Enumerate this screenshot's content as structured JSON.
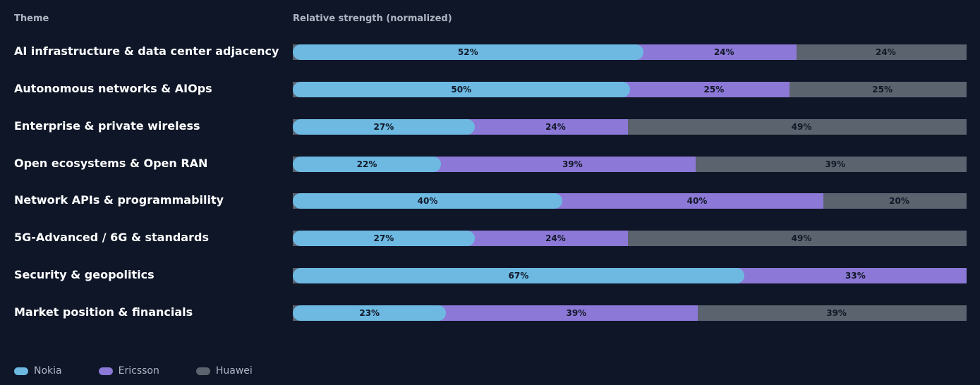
{
  "headers": {
    "theme": "Theme",
    "strength": "Relative strength (normalized)"
  },
  "colors": {
    "nokia": "#6db9e2",
    "ericsson": "#8c78d6",
    "huawei": "#5b636e"
  },
  "chart_data": {
    "type": "bar",
    "orientation": "horizontal",
    "stacked": true,
    "normalized": true,
    "xlabel": "Relative strength (normalized)",
    "ylabel": "Theme",
    "categories": [
      "AI infrastructure & data center adjacency",
      "Autonomous networks & AIOps",
      "Enterprise & private wireless",
      "Open ecosystems & Open RAN",
      "Network APIs & programmability",
      "5G-Advanced / 6G & standards",
      "Security & geopolitics",
      "Market position & financials"
    ],
    "series": [
      {
        "name": "Nokia",
        "color": "#6db9e2",
        "values": [
          52,
          50,
          27,
          22,
          40,
          27,
          67,
          23
        ],
        "labels": [
          "52%",
          "50%",
          "27%",
          "22%",
          "40%",
          "27%",
          "67%",
          "23%"
        ]
      },
      {
        "name": "Ericsson",
        "color": "#8c78d6",
        "values": [
          24,
          25,
          24,
          39,
          40,
          24,
          33,
          39
        ],
        "labels": [
          "24%",
          "25%",
          "24%",
          "39%",
          "40%",
          "24%",
          "33%",
          "39%"
        ]
      },
      {
        "name": "Huawei",
        "color": "#5b636e",
        "values": [
          24,
          25,
          49,
          39,
          20,
          49,
          0,
          39
        ],
        "labels": [
          "24%",
          "25%",
          "49%",
          "39%",
          "20%",
          "49%",
          "",
          "39%"
        ]
      }
    ],
    "xlim": [
      0,
      100
    ],
    "legend": "bottom-left"
  }
}
